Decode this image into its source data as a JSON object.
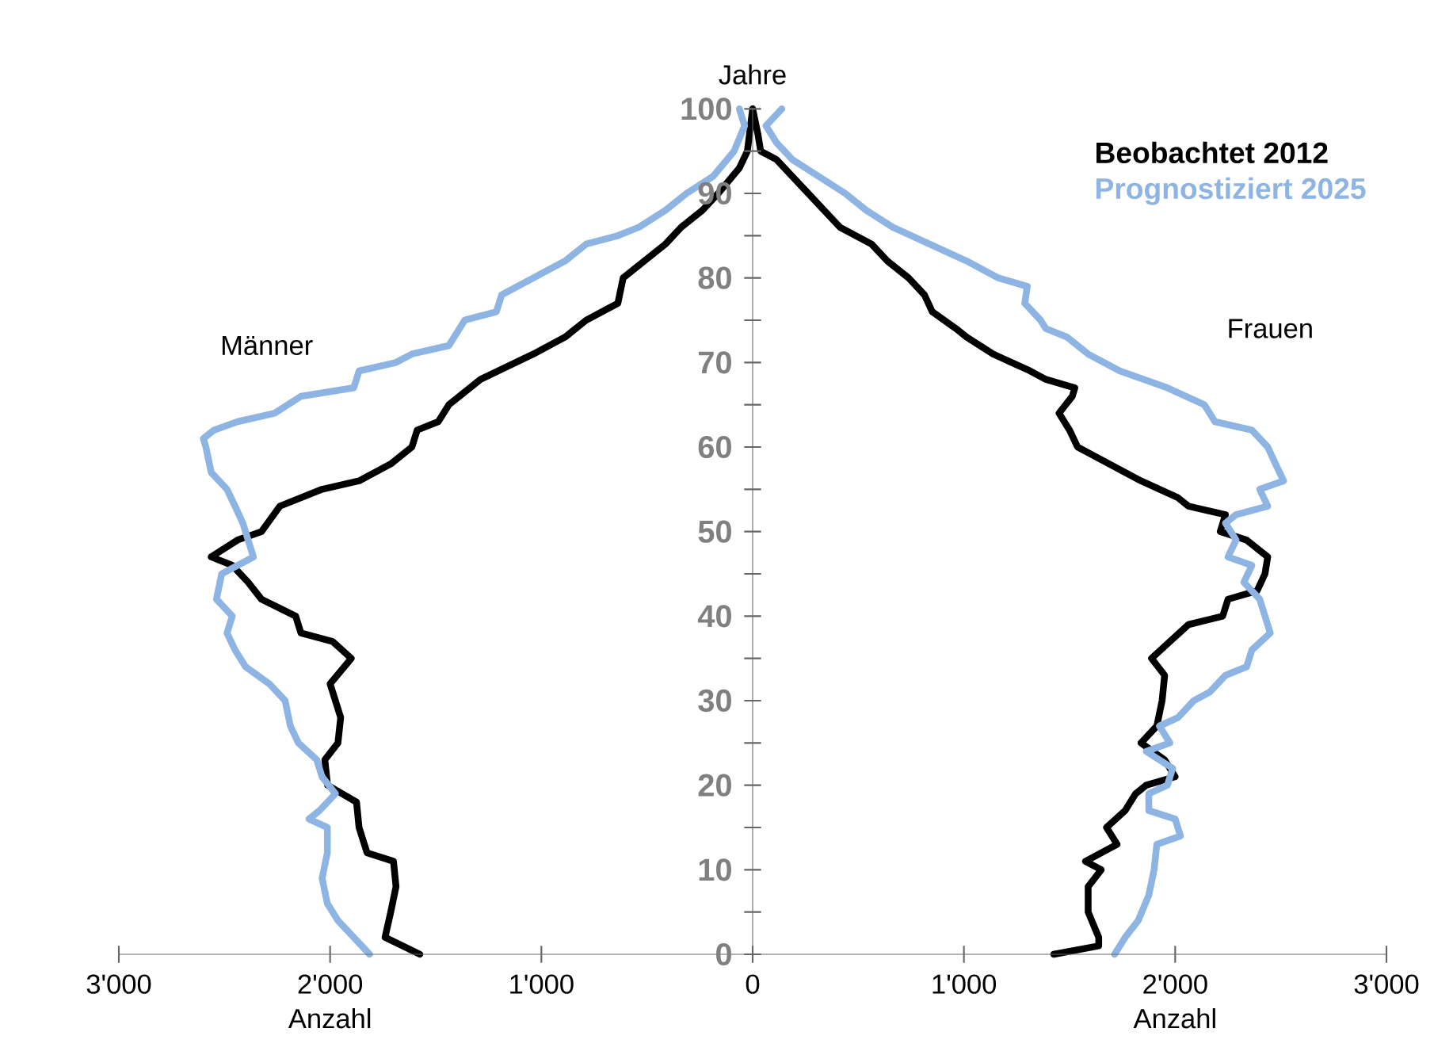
{
  "chart_data": {
    "type": "line",
    "ylabel": "Jahre",
    "xlabel": "Anzahl",
    "annotations": [
      "Männer",
      "Frauen",
      "Anzahl"
    ],
    "xlim": [
      -3000,
      3000
    ],
    "xticks": [
      {
        "value": -3000,
        "label": "3'000"
      },
      {
        "value": -2000,
        "label": "2'000"
      },
      {
        "value": -1000,
        "label": "1'000"
      },
      0,
      {
        "value": 1000,
        "label": "1'000"
      },
      {
        "value": 2000,
        "label": "2'000"
      },
      {
        "value": 3000,
        "label": "3'000"
      }
    ],
    "ylim": [
      0,
      100
    ],
    "yticks": [
      0,
      {
        "value": 5,
        "label": null
      },
      10,
      {
        "value": 15,
        "label": null
      },
      20,
      {
        "value": 25,
        "label": null
      },
      30,
      {
        "value": 35,
        "label": null
      },
      40,
      {
        "value": 45,
        "label": null
      },
      50,
      {
        "value": 55,
        "label": null
      },
      60,
      {
        "value": 65,
        "label": null
      },
      70,
      {
        "value": 75,
        "label": null
      },
      80,
      {
        "value": 85,
        "label": null
      },
      90,
      {
        "value": 95,
        "label": null
      },
      100
    ],
    "grid": false,
    "legend": "top right",
    "marker": "none",
    "line_style": "solid",
    "series": [
      {
        "name": "Beobachtet 2012",
        "color": "#000000",
        "x": [
          -1575,
          -1740,
          -1713,
          -1688,
          -1700,
          -1825,
          -1863,
          -1875,
          -2012,
          -2025,
          -1963,
          -1950,
          -2000,
          -1900,
          -1988,
          -2138,
          -2163,
          -2325,
          -2388,
          -2463,
          -2563,
          -2438,
          -2325,
          -2238,
          -2038,
          -1863,
          -1713,
          -1613,
          -1588,
          -1488,
          -1438,
          -1288,
          -1038,
          -888,
          -788,
          -638,
          -613,
          -513,
          -413,
          -338,
          -238,
          -163,
          -63,
          -25,
          0
        ],
        "values": [
          0,
          2,
          5,
          8,
          11,
          12,
          15,
          18,
          20,
          23,
          25,
          28,
          32,
          35,
          37,
          38,
          40,
          42,
          44,
          46,
          47,
          49,
          50,
          53,
          55,
          56,
          58,
          60,
          62,
          63,
          65,
          68,
          71,
          73,
          75,
          77,
          80,
          82,
          84,
          86,
          88,
          90,
          93,
          95,
          100
        ]
      },
      {
        "name": "Prognostiziert 2025",
        "color": "#8db4e2",
        "x": [
          -1813,
          -1963,
          -2013,
          -2038,
          -2013,
          -2013,
          -2100,
          -2050,
          -1975,
          -2038,
          -2063,
          -2150,
          -2188,
          -2213,
          -2288,
          -2400,
          -2450,
          -2488,
          -2463,
          -2538,
          -2513,
          -2363,
          -2388,
          -2413,
          -2450,
          -2488,
          -2563,
          -2588,
          -2600,
          -2550,
          -2438,
          -2263,
          -2138,
          -1888,
          -1863,
          -1688,
          -1613,
          -1438,
          -1363,
          -1213,
          -1188,
          -1038,
          -888,
          -788,
          -638,
          -538,
          -413,
          -313,
          -188,
          -88,
          -38,
          -63
        ],
        "values": [
          0,
          4,
          6,
          9,
          12,
          15,
          16,
          17,
          19,
          21,
          23,
          25,
          27,
          30,
          32,
          34,
          36,
          38,
          40,
          42,
          45,
          47,
          49,
          51,
          53,
          55,
          57,
          60,
          61,
          62,
          63,
          64,
          66,
          67,
          69,
          70,
          71,
          72,
          75,
          76,
          78,
          80,
          82,
          84,
          85,
          86,
          88,
          90,
          92,
          95,
          98,
          100
        ]
      },
      {
        "color": "#000000",
        "x": [
          1425,
          1638,
          1638,
          1588,
          1588,
          1650,
          1575,
          1725,
          1675,
          1763,
          1813,
          1863,
          2000,
          1950,
          1838,
          1913,
          1938,
          1950,
          1888,
          1975,
          2063,
          2225,
          2250,
          2388,
          2425,
          2438,
          2338,
          2213,
          2238,
          2063,
          2013,
          1838,
          1688,
          1538,
          1500,
          1450,
          1513,
          1525,
          1388,
          1313,
          1138,
          1013,
          963,
          850,
          813,
          738,
          638,
          563,
          413,
          338,
          263,
          188,
          113,
          38,
          25,
          0
        ],
        "values": [
          0,
          1,
          2,
          5,
          8,
          10,
          11,
          13,
          15,
          17,
          19,
          20,
          21,
          23,
          25,
          27,
          30,
          33,
          35,
          37,
          39,
          40,
          42,
          43,
          45,
          47,
          49,
          50,
          52,
          53,
          54,
          56,
          58,
          60,
          62,
          64,
          66,
          67,
          68,
          69,
          71,
          73,
          74,
          76,
          78,
          80,
          82,
          84,
          86,
          88,
          90,
          92,
          94,
          95,
          97,
          100
        ]
      },
      {
        "color": "#8db4e2",
        "x": [
          1713,
          1763,
          1825,
          1875,
          1900,
          1913,
          2025,
          2000,
          1875,
          1875,
          1963,
          1988,
          1863,
          1975,
          1925,
          2013,
          2088,
          2163,
          2238,
          2338,
          2363,
          2450,
          2425,
          2400,
          2325,
          2363,
          2250,
          2288,
          2238,
          2288,
          2438,
          2400,
          2513,
          2475,
          2438,
          2363,
          2188,
          2138,
          1963,
          1738,
          1588,
          1488,
          1388,
          1363,
          1288,
          1300,
          1163,
          1013,
          838,
          663,
          538,
          438,
          313,
          188,
          113,
          63,
          138
        ],
        "values": [
          0,
          2,
          4,
          7,
          10,
          13,
          14,
          16,
          17,
          19,
          20,
          22,
          24,
          25,
          27,
          28,
          30,
          31,
          33,
          34,
          36,
          38,
          40,
          42,
          44,
          46,
          47,
          49,
          51,
          52,
          53,
          55,
          56,
          58,
          60,
          62,
          63,
          65,
          67,
          69,
          71,
          73,
          74,
          75,
          77,
          79,
          80,
          82,
          84,
          86,
          88,
          90,
          92,
          94,
          96,
          98,
          100
        ]
      }
    ]
  }
}
